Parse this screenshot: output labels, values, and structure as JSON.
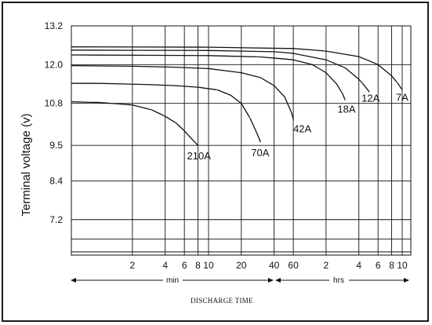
{
  "chart_data": {
    "type": "line",
    "title": "",
    "ylabel": "Terminal  voltage  (v)",
    "xlabel": "DISCHARGE  TIME",
    "ylim": [
      6.1,
      13.2
    ],
    "xlim_minutes": [
      0.55,
      720
    ],
    "x_scale": "log",
    "grid": true,
    "y_ticks": [
      "13.2",
      "12.0",
      "10.8",
      "9.5",
      "8.4",
      "7.2"
    ],
    "x_ticks_min": [
      "2",
      "4",
      "6",
      "8",
      "10",
      "20",
      "40",
      "60"
    ],
    "x_ticks_hrs": [
      "2",
      "4",
      "6",
      "8",
      "10"
    ],
    "unit_min": "min",
    "unit_hrs": "hrs",
    "series": [
      {
        "name": "210A",
        "x": [
          0.55,
          1,
          2,
          3,
          4,
          5,
          6,
          7,
          8
        ],
        "y": [
          10.85,
          10.83,
          10.75,
          10.6,
          10.4,
          10.2,
          9.95,
          9.7,
          9.5
        ]
      },
      {
        "name": "70A",
        "x": [
          0.55,
          1,
          3,
          5,
          8,
          12,
          16,
          20,
          24,
          28,
          30
        ],
        "y": [
          11.42,
          11.42,
          11.38,
          11.35,
          11.3,
          11.22,
          11.05,
          10.8,
          10.35,
          9.85,
          9.6
        ]
      },
      {
        "name": "42A",
        "x": [
          0.55,
          2,
          5,
          10,
          20,
          30,
          40,
          50,
          58,
          60
        ],
        "y": [
          11.97,
          11.95,
          11.92,
          11.88,
          11.75,
          11.6,
          11.35,
          11.0,
          10.5,
          10.3
        ]
      },
      {
        "name": "18A",
        "x": [
          0.55,
          10,
          30,
          60,
          90,
          120,
          150,
          170,
          180
        ],
        "y": [
          12.3,
          12.28,
          12.24,
          12.15,
          12.0,
          11.75,
          11.4,
          11.1,
          10.9
        ]
      },
      {
        "name": "12A",
        "x": [
          0.55,
          10,
          40,
          60,
          120,
          180,
          240,
          270,
          300
        ],
        "y": [
          12.45,
          12.44,
          12.4,
          12.35,
          12.15,
          11.9,
          11.55,
          11.35,
          11.15
        ]
      },
      {
        "name": "7A",
        "x": [
          0.55,
          10,
          60,
          120,
          240,
          360,
          480,
          540,
          600
        ],
        "y": [
          12.55,
          12.54,
          12.5,
          12.42,
          12.25,
          12.0,
          11.65,
          11.45,
          11.22
        ]
      }
    ]
  }
}
